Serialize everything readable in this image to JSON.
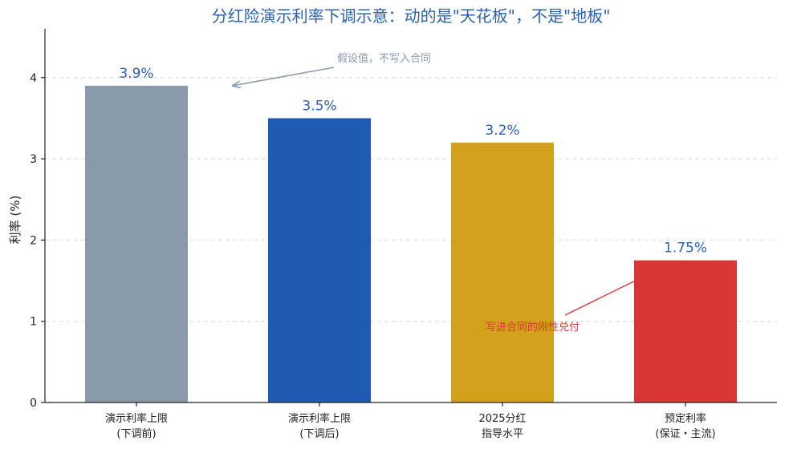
{
  "chart_data": {
    "type": "bar",
    "title": "分红险演示利率下调示意：动的是\"天花板\"，不是\"地板\"",
    "ylabel": "利率 (%)",
    "ylim": [
      0,
      4.6
    ],
    "yticks": [
      0,
      1,
      2,
      3,
      4
    ],
    "grid": true,
    "categories": [
      [
        "演示利率上限",
        "(下调前)"
      ],
      [
        "演示利率上限",
        "(下调后)"
      ],
      [
        "2025分红",
        "指导水平"
      ],
      [
        "预定利率",
        "(保证・主流)"
      ]
    ],
    "values": [
      3.9,
      3.5,
      3.2,
      1.75
    ],
    "value_labels": [
      "3.9%",
      "3.5%",
      "3.2%",
      "1.75%"
    ],
    "colors": [
      "#8a9aab",
      "#1f5ab3",
      "#d4a11c",
      "#d93636"
    ],
    "annotations": [
      {
        "text": "假设值，不写入合同",
        "target_index": 0,
        "color": "#8a9aab"
      },
      {
        "text": "写进合同的刚性兑付",
        "target_index": 3,
        "color": "#d93636"
      }
    ]
  }
}
